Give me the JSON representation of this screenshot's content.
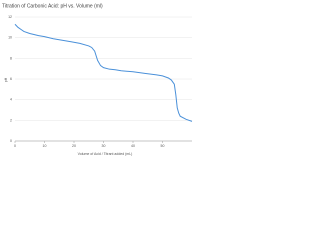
{
  "chart_data": {
    "type": "line",
    "title": "Titration of Carbonic Acid: pH vs. Volume (ml)",
    "x_label": "Volume of Acid / Titrant added (mL)",
    "y_label": "pH",
    "x": [
      0,
      1,
      2,
      3,
      5,
      8,
      10,
      13,
      16,
      19,
      22,
      25,
      26,
      27,
      28,
      29,
      30,
      32,
      34,
      36,
      40,
      44,
      48,
      50,
      52,
      53,
      54,
      54.5,
      55,
      55.5,
      56,
      58,
      60
    ],
    "series": [
      {
        "name": "pH",
        "color": "#4a90d9",
        "values": [
          11.3,
          11.0,
          10.8,
          10.6,
          10.4,
          10.2,
          10.1,
          9.9,
          9.75,
          9.6,
          9.45,
          9.2,
          9.05,
          8.7,
          7.8,
          7.3,
          7.1,
          6.95,
          6.9,
          6.8,
          6.7,
          6.55,
          6.4,
          6.3,
          6.1,
          5.9,
          5.5,
          4.5,
          3.2,
          2.7,
          2.4,
          2.1,
          1.9
        ]
      }
    ],
    "xlim": [
      0,
      60
    ],
    "xticks": [
      0,
      10,
      20,
      30,
      40,
      50
    ],
    "ylim": [
      0,
      12
    ],
    "yticks": [
      0,
      2,
      4,
      6,
      8,
      10,
      12
    ],
    "grid": true
  }
}
